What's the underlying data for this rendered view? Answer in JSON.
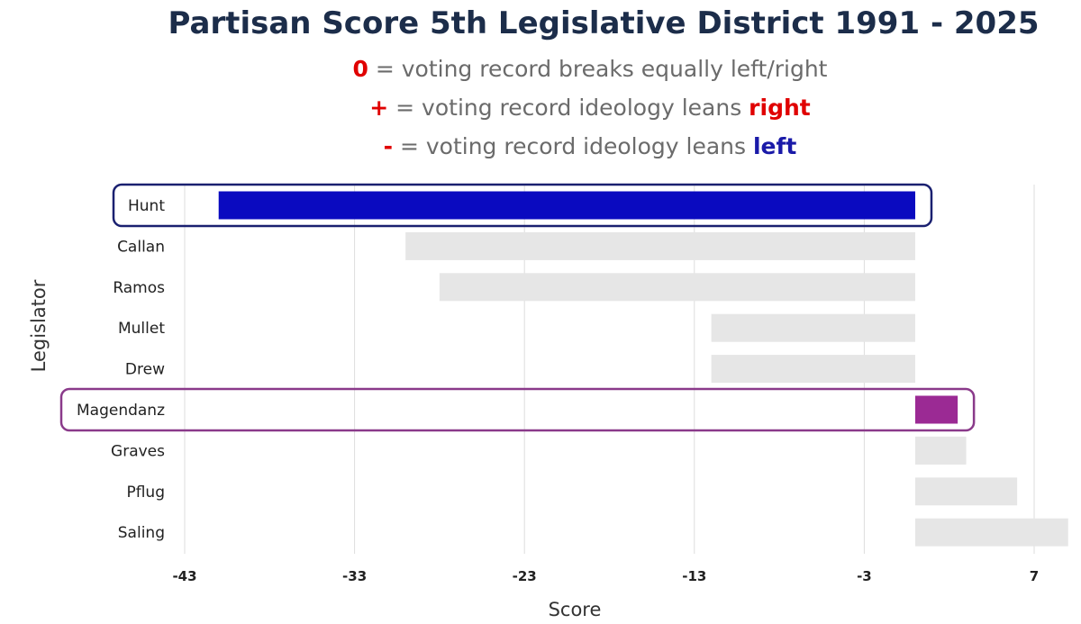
{
  "title": "Partisan Score 5th Legislative District 1991 - 2025",
  "legend": {
    "zero": {
      "symbol": "0",
      "text": " = voting record breaks equally left/right"
    },
    "plus": {
      "symbol": "+",
      "text": " = voting record ideology leans ",
      "emph": "right"
    },
    "minus": {
      "symbol": "-",
      "text": " = voting record ideology leans ",
      "emph": "left"
    }
  },
  "colors": {
    "title": "#1c2d4a",
    "highlight_left": "#0a0ac0",
    "highlight_right": "#9b2a94",
    "neutral_bar": "#e6e6e6",
    "grid": "#dddddd",
    "box_left": "#1a2070",
    "box_right": "#8a3a8a"
  },
  "chart_data": {
    "type": "bar",
    "orientation": "horizontal",
    "categories": [
      "Hunt",
      "Callan",
      "Ramos",
      "Mullet",
      "Drew",
      "Magendanz",
      "Graves",
      "Pflug",
      "Saling"
    ],
    "values": [
      -41,
      -30,
      -28,
      -12,
      -12,
      2.5,
      3,
      6,
      9
    ],
    "highlighted": {
      "Hunt": "left",
      "Magendanz": "right"
    },
    "xlabel": "Score",
    "ylabel": "Legislator",
    "xticks": [
      -43,
      -33,
      -23,
      -13,
      -3,
      7
    ],
    "xlim": [
      -43,
      9
    ],
    "grid": true
  }
}
